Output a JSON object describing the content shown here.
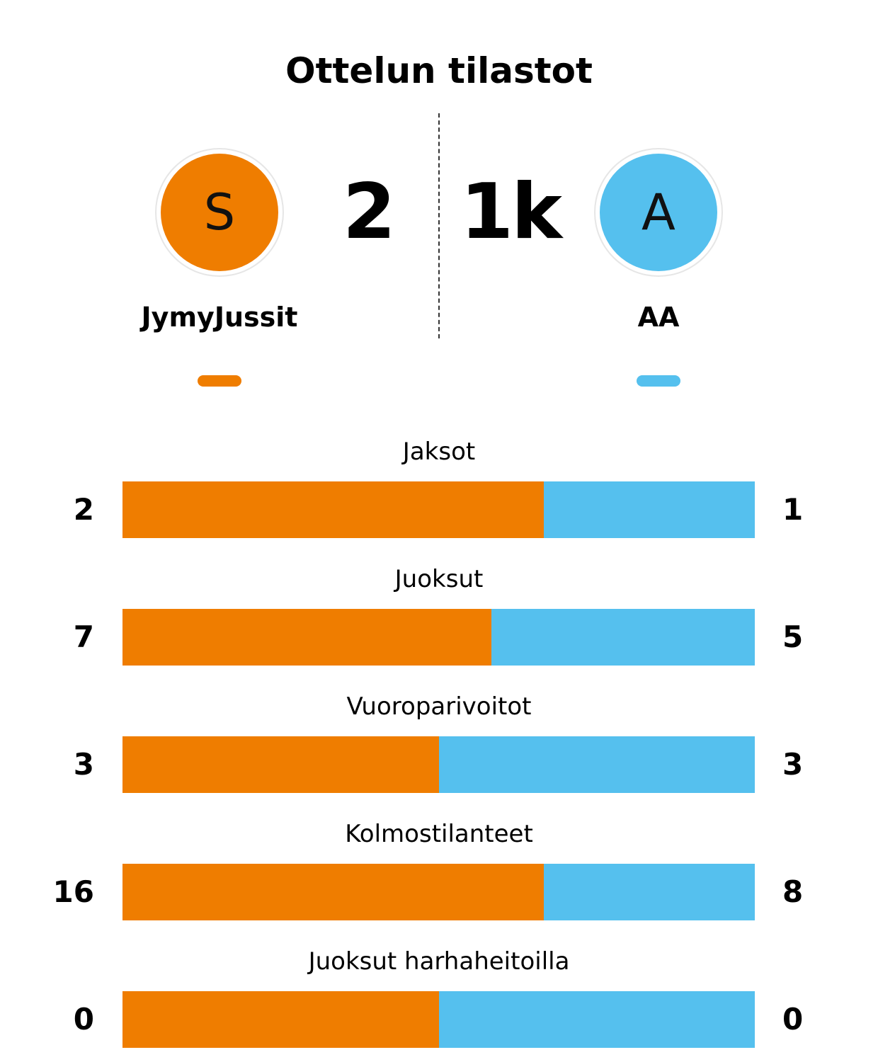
{
  "title": "Ottelun tilastot",
  "colors": {
    "home": "#ef7d00",
    "away": "#55c0ee"
  },
  "home": {
    "avatar_letter": "S",
    "score": "2",
    "name": "JymyJussit"
  },
  "away": {
    "avatar_letter": "A",
    "score": "1k",
    "name": "AA"
  },
  "stats": [
    {
      "label": "Jaksot",
      "home": 2,
      "away": 1
    },
    {
      "label": "Juoksut",
      "home": 7,
      "away": 5
    },
    {
      "label": "Vuoroparivoitot",
      "home": 3,
      "away": 3
    },
    {
      "label": "Kolmostilanteet",
      "home": 16,
      "away": 8
    },
    {
      "label": "Juoksut harhaheitoilla",
      "home": 0,
      "away": 0
    }
  ]
}
